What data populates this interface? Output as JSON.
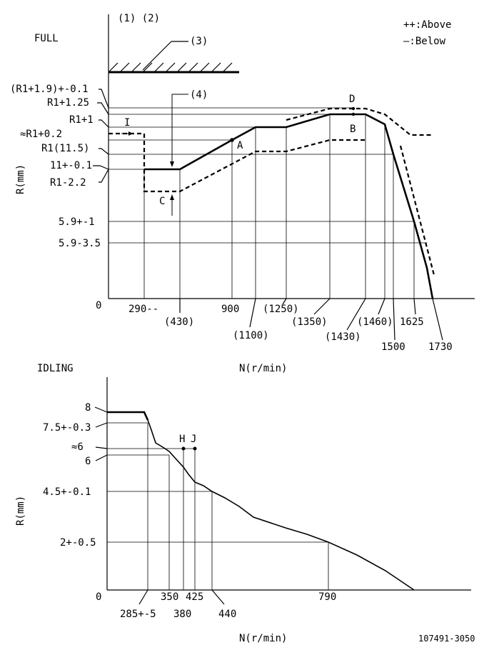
{
  "legend": {
    "above": "++:Above",
    "below": "—:Below"
  },
  "full": {
    "title": "FULL",
    "refs": {
      "ref12": "(1) (2)",
      "ref3": "(3)",
      "ref4": "(4)"
    },
    "y_axis_label": "R(mm)",
    "x_axis_label": "N(r/min)",
    "origin": "0",
    "y_labels": [
      "(R1+1.9)+-0.1",
      "R1+1.25",
      "R1+1",
      "≈R1+0.2",
      "R1(11.5)",
      "11+-0.1",
      "R1-2.2",
      "5.9+-1",
      "5.9-3.5"
    ],
    "x_labels": [
      "290--",
      "(430)",
      "900",
      "(1100)",
      "(1250)",
      "(1350)",
      "(1430)",
      "(1460)",
      "1500",
      "1625",
      "1730"
    ],
    "points": {
      "A": "A",
      "B": "B",
      "C": "C",
      "D": "D",
      "I": "I"
    }
  },
  "idling": {
    "title": "IDLING",
    "y_axis_label": "R(mm)",
    "x_axis_label": "N(r/min)",
    "origin": "0",
    "y_labels": [
      "8",
      "7.5+-0.3",
      "≈6",
      "6",
      "4.5+-0.1",
      "2+-0.5"
    ],
    "x_labels": [
      "285+-5",
      "350",
      "380",
      "425",
      "440",
      "790"
    ],
    "points": {
      "H": "H",
      "J": "J"
    }
  },
  "drawing_number": "107491-3050",
  "chart_data": [
    {
      "type": "line",
      "title": "FULL",
      "xlabel": "N(r/min)",
      "ylabel": "R(mm)",
      "x_ticks": [
        "290--",
        "(430)",
        "900",
        "(1100)",
        "(1250)",
        "(1350)",
        "(1430)",
        "(1460)",
        "1500",
        "1625",
        "1730"
      ],
      "y_ticks": [
        "(R1+1.9)+-0.1",
        "R1+1.25",
        "R1+1",
        "≈R1+0.2",
        "R1(11.5)",
        "11+-0.1",
        "R1-2.2",
        "5.9+-1",
        "5.9-3.5"
      ],
      "legend": [
        "++:Above",
        "—:Below"
      ]
    },
    {
      "type": "line",
      "title": "IDLING",
      "xlabel": "N(r/min)",
      "ylabel": "R(mm)",
      "x_ticks": [
        "285+-5",
        "350",
        "380",
        "425",
        "440",
        "790"
      ],
      "y_ticks": [
        "8",
        "7.5+-0.3",
        "≈6",
        "6",
        "4.5+-0.1",
        "2+-0.5"
      ]
    }
  ]
}
